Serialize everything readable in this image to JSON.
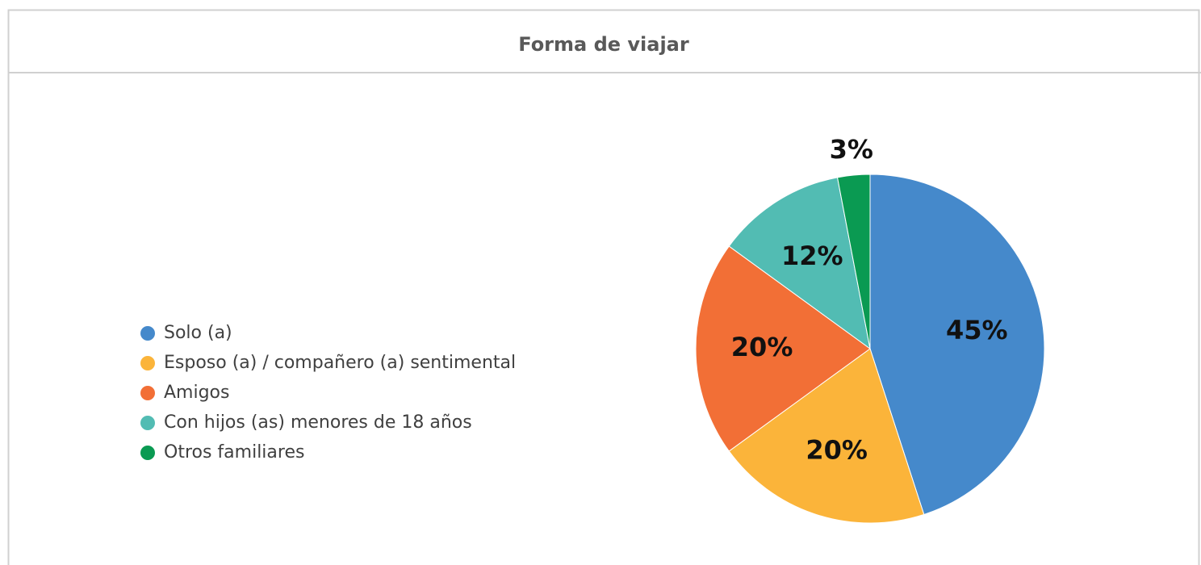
{
  "chart_data": {
    "type": "pie",
    "title": "Forma de viajar",
    "categories": [
      "Solo (a)",
      "Esposo (a) / compañero (a) sentimental",
      "Amigos",
      "Con hijos (as) menores de 18 años",
      "Otros familiares"
    ],
    "values": [
      45,
      20,
      20,
      12,
      3
    ],
    "value_labels": [
      "45%",
      "20%",
      "20%",
      "12%",
      "3%"
    ],
    "colors": [
      "#4589cb",
      "#fbb43a",
      "#f26f36",
      "#52bcb3",
      "#0a9a52"
    ],
    "legend": "left"
  }
}
